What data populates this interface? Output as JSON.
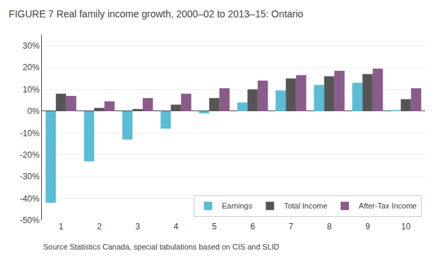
{
  "chart_data": {
    "type": "bar",
    "title": "FIGURE 7 Real family income growth, 2000–02 to 2013–15: Ontario",
    "categories": [
      1,
      2,
      3,
      4,
      5,
      6,
      7,
      8,
      9,
      10
    ],
    "series": [
      {
        "name": "Earnings",
        "color": "#5bbcd6",
        "values": [
          -42,
          -23,
          -13,
          -8,
          -1,
          4,
          9.5,
          12,
          13,
          0.5
        ]
      },
      {
        "name": "Total Income",
        "color": "#555555",
        "values": [
          8,
          1.5,
          1,
          3,
          6,
          10,
          15,
          16,
          17,
          5.5
        ]
      },
      {
        "name": "After-Tax Income",
        "color": "#8b5b8b",
        "values": [
          7,
          4.5,
          6,
          8,
          10.5,
          14,
          16.5,
          18.5,
          19.5,
          10.5
        ]
      }
    ],
    "ylim": [
      -50,
      35
    ],
    "yticks": [
      {
        "value": -50,
        "label": "-50%"
      },
      {
        "value": -40,
        "label": "-40%"
      },
      {
        "value": -30,
        "label": "-30%"
      },
      {
        "value": -20,
        "label": "-20%"
      },
      {
        "value": -10,
        "label": "-10%"
      },
      {
        "value": 0,
        "label": "0%"
      },
      {
        "value": 10,
        "label": "10%"
      },
      {
        "value": 20,
        "label": "20%"
      },
      {
        "value": 30,
        "label": "30%"
      }
    ],
    "grid": true,
    "legend": "lower right",
    "annotations": [
      {
        "text": "Source Statistics Canada, special tabulations based on CIS and SLID"
      }
    ]
  }
}
